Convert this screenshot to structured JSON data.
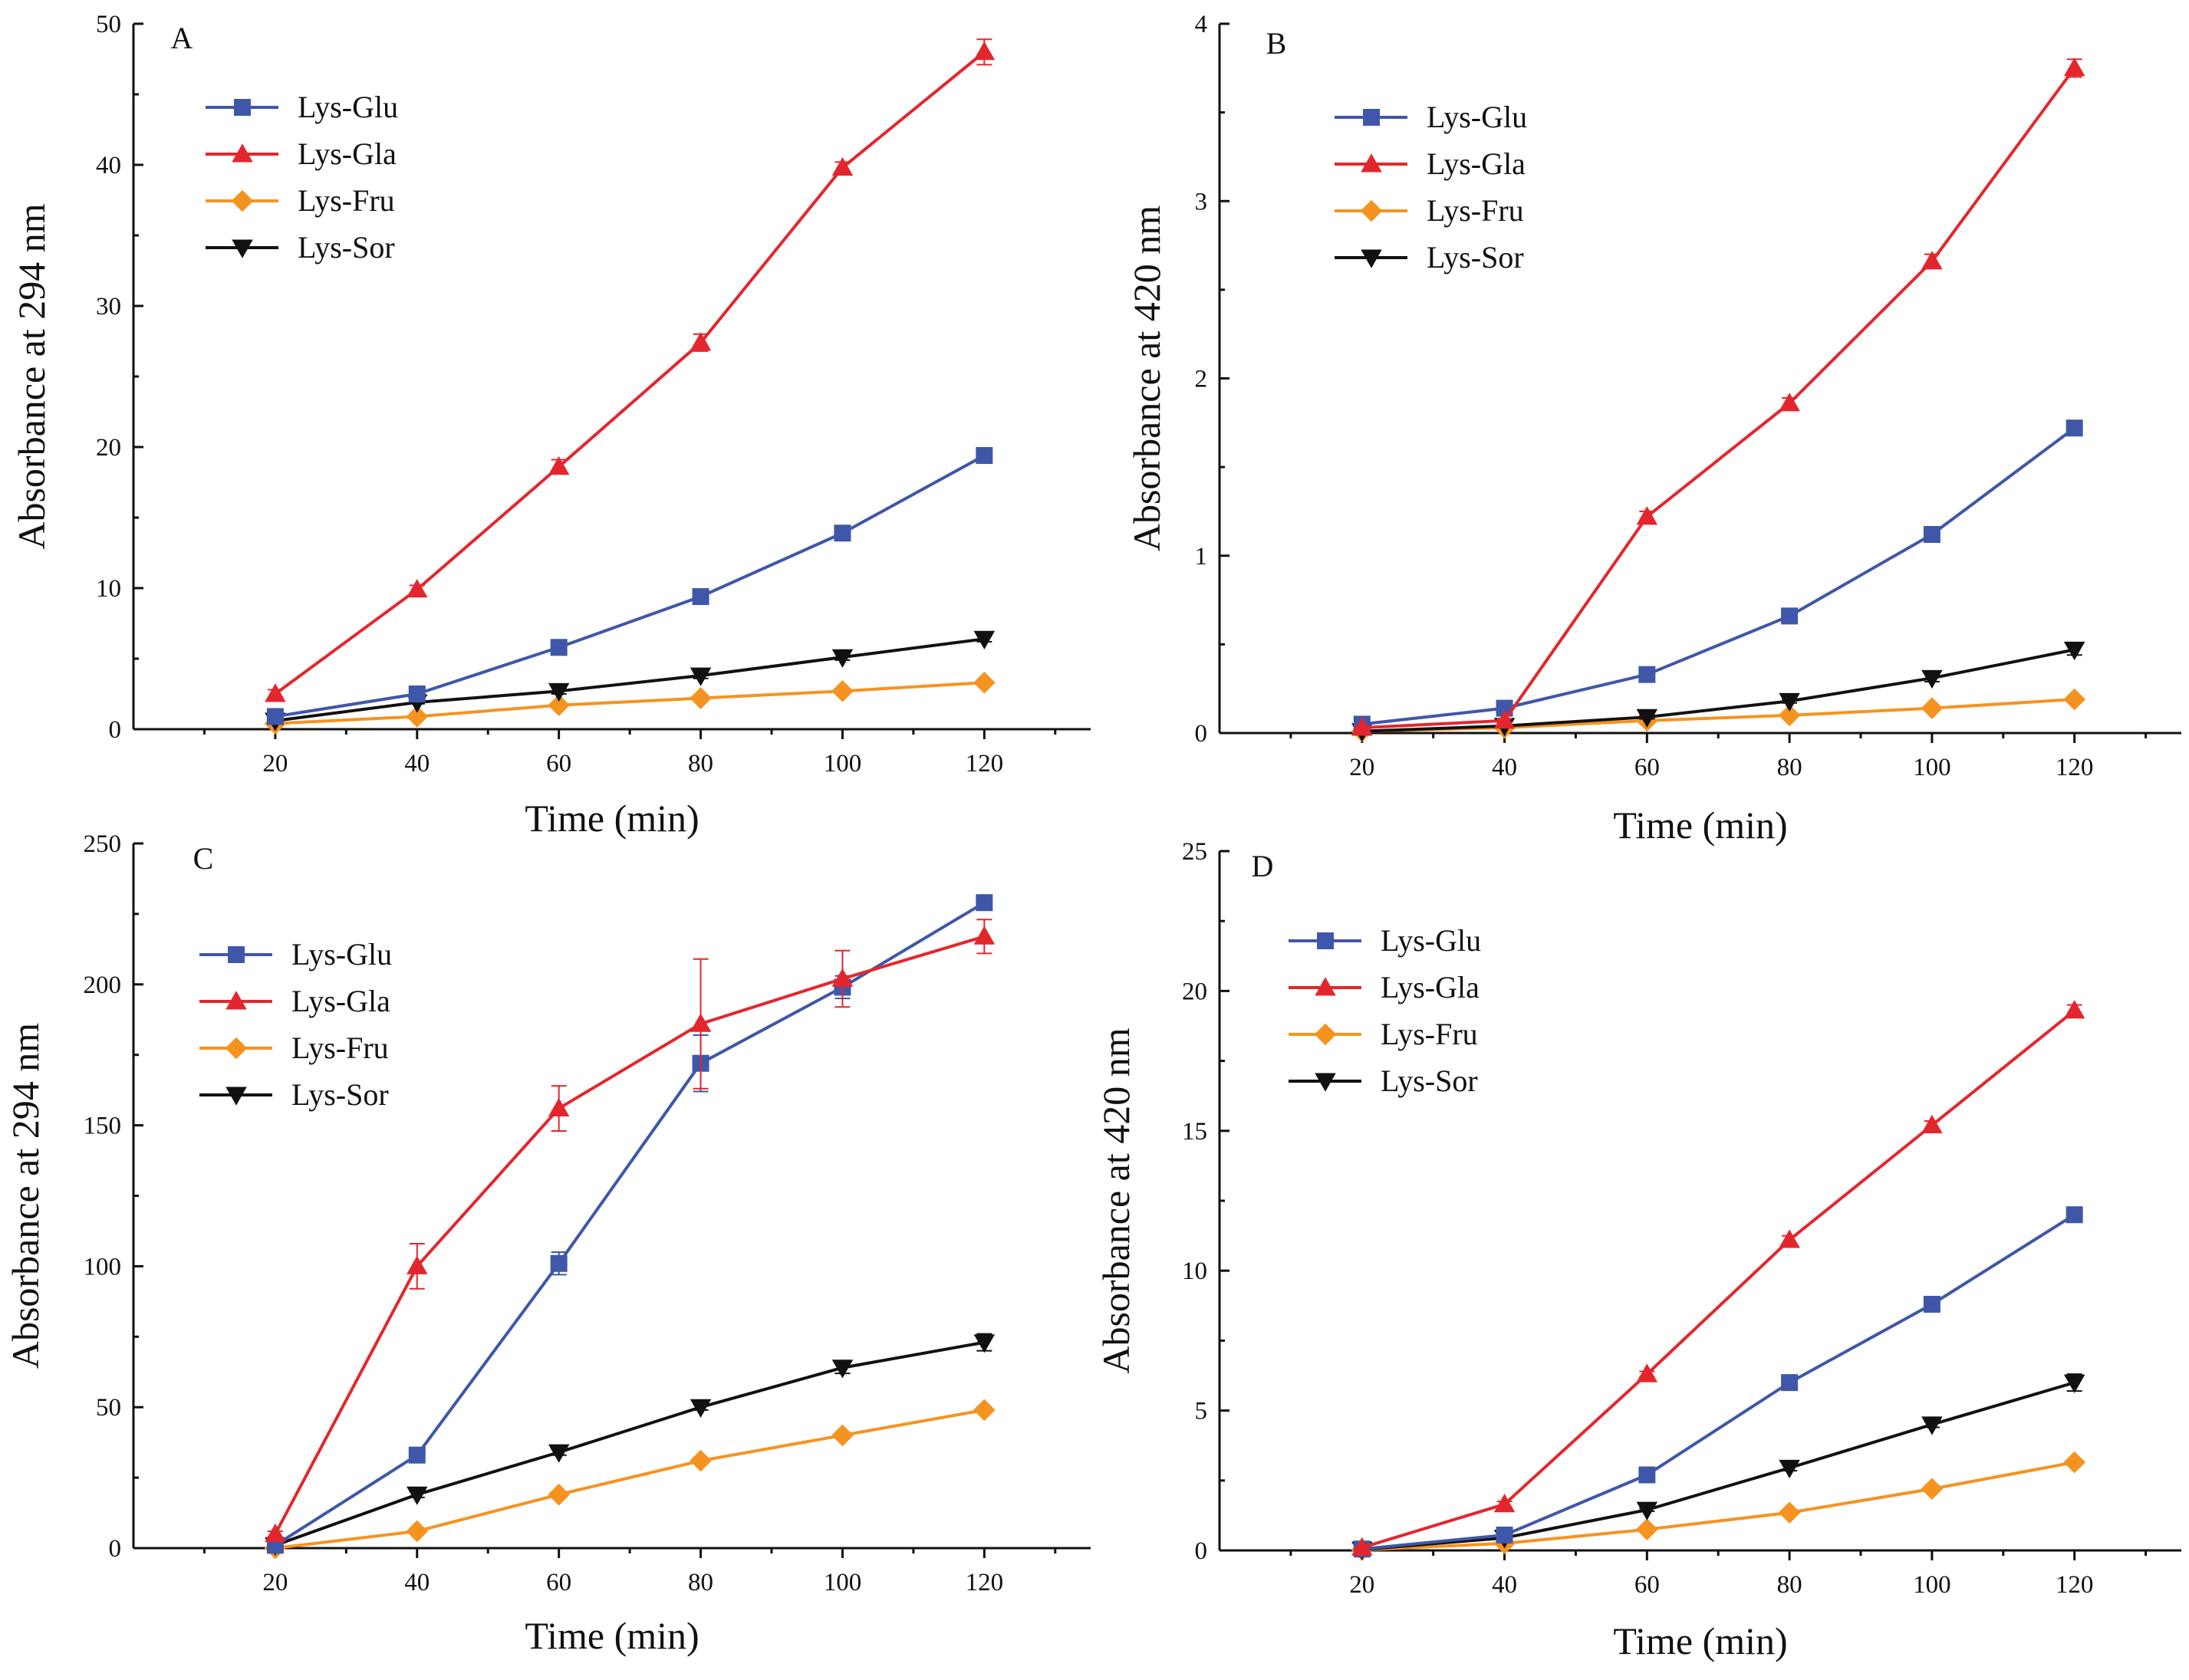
{
  "chart_data": [
    {
      "type": "line",
      "panel_label": "A",
      "xlabel": "Time (min)",
      "ylabel": "Absorbance at 294 nm",
      "xlim": [
        0,
        135
      ],
      "ylim": [
        0,
        50
      ],
      "x_ticks": [
        20,
        40,
        60,
        80,
        100,
        120
      ],
      "y_ticks": [
        0,
        10,
        20,
        30,
        40,
        50
      ],
      "grid": false,
      "legend_position": "top-left",
      "x": [
        20,
        40,
        60,
        80,
        100,
        120
      ],
      "series": [
        {
          "name": "Lys-Glu",
          "marker": "square",
          "color": "#3f57a8",
          "values": [
            0.9,
            2.5,
            5.8,
            9.4,
            13.9,
            19.4
          ],
          "error": [
            0.2,
            0.2,
            0.3,
            0.3,
            0.4,
            0.4
          ]
        },
        {
          "name": "Lys-Gla",
          "marker": "triangle-up",
          "color": "#e3262d",
          "values": [
            2.5,
            9.9,
            18.6,
            27.4,
            39.8,
            48.0
          ],
          "error": [
            0.3,
            0.3,
            0.5,
            0.6,
            0.4,
            0.9
          ]
        },
        {
          "name": "Lys-Fru",
          "marker": "diamond",
          "color": "#f59320",
          "values": [
            0.4,
            0.9,
            1.7,
            2.2,
            2.7,
            3.3
          ],
          "error": [
            0.1,
            0.1,
            0.1,
            0.1,
            0.1,
            0.1
          ]
        },
        {
          "name": "Lys-Sor",
          "marker": "triangle-down",
          "color": "#111111",
          "values": [
            0.6,
            1.9,
            2.7,
            3.8,
            5.1,
            6.4
          ],
          "error": [
            0.1,
            0.1,
            0.2,
            0.2,
            0.2,
            0.2
          ]
        }
      ]
    },
    {
      "type": "line",
      "panel_label": "B",
      "xlabel": "Time (min)",
      "ylabel": "Absorbance at 420 nm",
      "xlim": [
        0,
        135
      ],
      "ylim": [
        0,
        4
      ],
      "x_ticks": [
        20,
        40,
        60,
        80,
        100,
        120
      ],
      "y_ticks": [
        0,
        1,
        2,
        3,
        4
      ],
      "grid": false,
      "legend_position": "top-left",
      "x": [
        20,
        40,
        60,
        80,
        100,
        120
      ],
      "series": [
        {
          "name": "Lys-Glu",
          "marker": "square",
          "color": "#3f57a8",
          "values": [
            0.05,
            0.14,
            0.33,
            0.66,
            1.12,
            1.72
          ],
          "error": [
            0.01,
            0.01,
            0.02,
            0.02,
            0.03,
            0.03
          ]
        },
        {
          "name": "Lys-Gla",
          "marker": "triangle-up",
          "color": "#e3262d",
          "values": [
            0.03,
            0.07,
            1.22,
            1.86,
            2.66,
            3.75
          ],
          "error": [
            0.01,
            0.01,
            0.03,
            0.03,
            0.04,
            0.05
          ]
        },
        {
          "name": "Lys-Fru",
          "marker": "diamond",
          "color": "#f59320",
          "values": [
            0.01,
            0.03,
            0.07,
            0.1,
            0.14,
            0.19
          ],
          "error": [
            0.005,
            0.005,
            0.01,
            0.01,
            0.01,
            0.01
          ]
        },
        {
          "name": "Lys-Sor",
          "marker": "triangle-down",
          "color": "#111111",
          "values": [
            0.01,
            0.04,
            0.09,
            0.18,
            0.31,
            0.47
          ],
          "error": [
            0.005,
            0.005,
            0.01,
            0.01,
            0.02,
            0.03
          ]
        }
      ]
    },
    {
      "type": "line",
      "panel_label": "C",
      "xlabel": "Time (min)",
      "ylabel": "Absorbance at 294 nm",
      "xlim": [
        0,
        135
      ],
      "ylim": [
        0,
        250
      ],
      "x_ticks": [
        20,
        40,
        60,
        80,
        100,
        120
      ],
      "y_ticks": [
        0,
        50,
        100,
        150,
        200,
        250
      ],
      "grid": false,
      "legend_position": "top-left",
      "x": [
        20,
        40,
        60,
        80,
        100,
        120
      ],
      "series": [
        {
          "name": "Lys-Glu",
          "marker": "square",
          "color": "#3f57a8",
          "values": [
            1,
            33,
            101,
            172,
            199,
            229
          ],
          "error": [
            0.5,
            2,
            4,
            10,
            4,
            2
          ]
        },
        {
          "name": "Lys-Gla",
          "marker": "triangle-up",
          "color": "#e3262d",
          "values": [
            5,
            100,
            156,
            186,
            202,
            217
          ],
          "error": [
            1,
            8,
            8,
            23,
            10,
            6
          ]
        },
        {
          "name": "Lys-Fru",
          "marker": "diamond",
          "color": "#f59320",
          "values": [
            0,
            6,
            19,
            31,
            40,
            49
          ],
          "error": [
            0.5,
            1,
            1,
            1,
            1,
            1
          ]
        },
        {
          "name": "Lys-Sor",
          "marker": "triangle-down",
          "color": "#111111",
          "values": [
            1,
            19,
            34,
            50,
            64,
            73
          ],
          "error": [
            0.5,
            1,
            1,
            1,
            2,
            3
          ]
        }
      ]
    },
    {
      "type": "line",
      "panel_label": "D",
      "xlabel": "Time (min)",
      "ylabel": "Absorbance at 420 nm",
      "xlim": [
        0,
        135
      ],
      "ylim": [
        0,
        25
      ],
      "x_ticks": [
        20,
        40,
        60,
        80,
        100,
        120
      ],
      "y_ticks": [
        0,
        5,
        10,
        15,
        20,
        25
      ],
      "grid": false,
      "legend_position": "top-left",
      "x": [
        20,
        40,
        60,
        80,
        100,
        120
      ],
      "series": [
        {
          "name": "Lys-Glu",
          "marker": "square",
          "color": "#3f57a8",
          "values": [
            0.05,
            0.55,
            2.7,
            6.0,
            8.8,
            12.0
          ],
          "error": [
            0.02,
            0.05,
            0.1,
            0.1,
            0.1,
            0.15
          ]
        },
        {
          "name": "Lys-Gla",
          "marker": "triangle-up",
          "color": "#e3262d",
          "values": [
            0.1,
            1.65,
            6.3,
            11.1,
            15.2,
            19.3
          ],
          "error": [
            0.02,
            0.1,
            0.1,
            0.15,
            0.15,
            0.2
          ]
        },
        {
          "name": "Lys-Fru",
          "marker": "diamond",
          "color": "#f59320",
          "values": [
            0.02,
            0.25,
            0.75,
            1.35,
            2.2,
            3.15
          ],
          "error": [
            0.01,
            0.02,
            0.05,
            0.05,
            0.05,
            0.1
          ]
        },
        {
          "name": "Lys-Sor",
          "marker": "triangle-down",
          "color": "#111111",
          "values": [
            0.03,
            0.45,
            1.45,
            2.95,
            4.5,
            6.0
          ],
          "error": [
            0.01,
            0.03,
            0.05,
            0.1,
            0.1,
            0.3
          ]
        }
      ]
    }
  ]
}
